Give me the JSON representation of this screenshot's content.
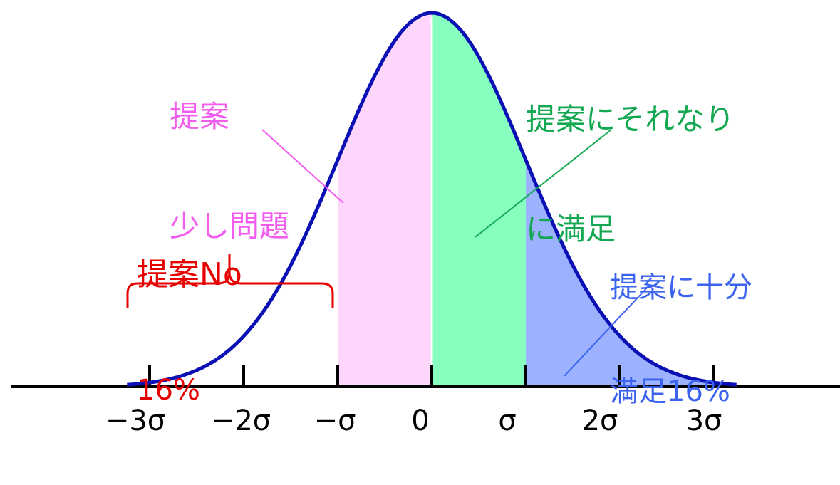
{
  "colors": {
    "curve": "#0b10b5",
    "axis": "#000000",
    "region_pink": "#ffd6fb",
    "region_green": "#86ffbf",
    "region_blue": "#9cb2ff",
    "label_pink": "#f25df0",
    "label_green": "#12a851",
    "label_blue": "#3b63ef",
    "label_red": "#e60000"
  },
  "labels": {
    "no": {
      "line1": "提案No",
      "line2": "16%"
    },
    "little_problem": {
      "line1": "提案",
      "line2": "少し問題"
    },
    "reasonably_satisfied": {
      "line1": "提案にそれなり",
      "line2": "に満足"
    },
    "fully_satisfied": {
      "line1": "提案に十分",
      "line2": "満足16%"
    }
  },
  "axis_ticks": [
    "−3σ",
    "−2σ",
    "−σ",
    "0",
    "σ",
    "2σ",
    "3σ"
  ],
  "chart_data": {
    "type": "area",
    "x_range_sigma": [
      -3,
      3
    ],
    "shaded_regions": [
      {
        "from_sigma": -1,
        "to_sigma": 0,
        "color": "#ffd6fb"
      },
      {
        "from_sigma": 0,
        "to_sigma": 1,
        "color": "#86ffbf"
      },
      {
        "from_sigma": 1,
        "to_sigma": 3,
        "color": "#9cb2ff"
      }
    ]
  }
}
